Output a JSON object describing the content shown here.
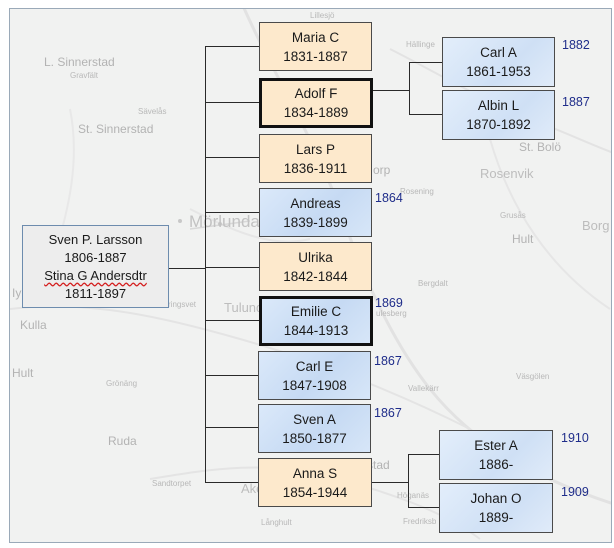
{
  "map_labels": {
    "lillesjo": "Lillesjö",
    "l_sinnerstad": "L. Sinnerstad",
    "gravfalt": "Gravfält",
    "hallinge": "Hällinge",
    "svalas": "Sävelås",
    "st_sinnerstad": "St. Sinnerstad",
    "st_bolo": "St. Bolö",
    "torp": "orp",
    "rosening": "Rosening",
    "rosenvik": "Rosenvik",
    "morlunda": "Mörlunda",
    "grusas": "Grusås",
    "borg": "Borg",
    "hult": "Hult",
    "bergdalt": "Bergdalt",
    "kulla": "Kulla",
    "lyl": "Iyl",
    "ringsvet": "ringsvet",
    "tulunda": "Tulunda",
    "ulesberg": "ulesberg",
    "hult2": "Hult",
    "gronang": "Grönäng",
    "vallekarr": "Vallekärr",
    "vasgolen": "Väsgölen",
    "ruda": "Ruda",
    "stad": "stad",
    "sandtorpet": "Sandtorpet",
    "akero": "Akerö",
    "hoganas": "Höganäs",
    "fredriksberg": "Fredriksb",
    "langhult": "Långhult"
  },
  "root": {
    "name": "Sven P. Larsson",
    "years": "1806-1887",
    "spouse": "Stina G Andersdtr",
    "spouse_years": "1811-1897"
  },
  "children": [
    {
      "name": "Maria C",
      "years": "1831-1887",
      "emigration": ""
    },
    {
      "name": "Adolf F",
      "years": "1834-1889",
      "emigration": ""
    },
    {
      "name": "Lars P",
      "years": "1836-1911",
      "emigration": ""
    },
    {
      "name": "Andreas",
      "years": "1839-1899",
      "emigration": "1864"
    },
    {
      "name": "Ulrika",
      "years": "1842-1844",
      "emigration": ""
    },
    {
      "name": "Emilie C",
      "years": "1844-1913",
      "emigration": "1869"
    },
    {
      "name": "Carl E",
      "years": "1847-1908",
      "emigration": "1867"
    },
    {
      "name": "Sven A",
      "years": "1850-1877",
      "emigration": "1867"
    },
    {
      "name": "Anna S",
      "years": "1854-1944",
      "emigration": ""
    }
  ],
  "grandchildren_adolf": [
    {
      "name": "Carl A",
      "years": "1861-1953",
      "emigration": "1882"
    },
    {
      "name": "Albin L",
      "years": "1870-1892",
      "emigration": "1887"
    }
  ],
  "grandchildren_anna": [
    {
      "name": "Ester A",
      "years": "1886-",
      "emigration": "1910"
    },
    {
      "name": "Johan O",
      "years": "1889-",
      "emigration": "1909"
    }
  ]
}
